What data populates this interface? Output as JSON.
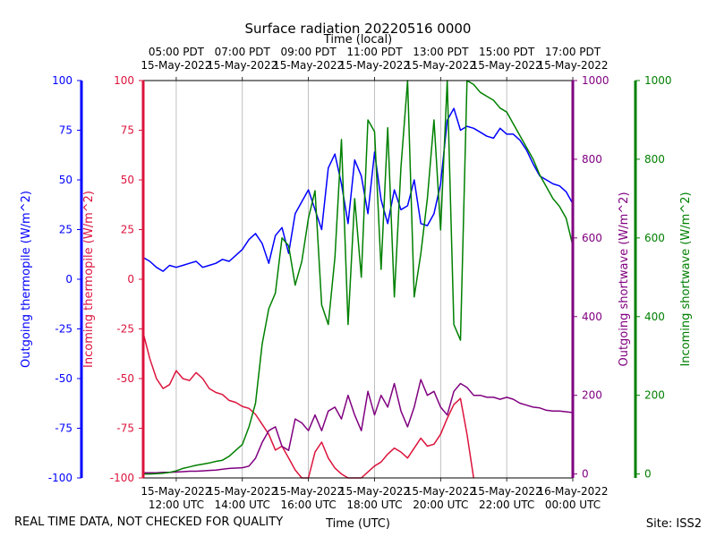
{
  "chart_data": {
    "type": "line",
    "title": "Surface radiation 20220516 0000",
    "top_axis_label": "Time (local)",
    "xlabel": "Time (UTC)",
    "footer_left": "REAL TIME DATA, NOT CHECKED FOR QUALITY",
    "footer_right": "Site: ISS2",
    "xlim": [
      11.0,
      24.0
    ],
    "bottom_ticks": [
      {
        "x": 12,
        "date": "15-May-2022",
        "time": "12:00 UTC"
      },
      {
        "x": 14,
        "date": "15-May-2022",
        "time": "14:00 UTC"
      },
      {
        "x": 16,
        "date": "15-May-2022",
        "time": "16:00 UTC"
      },
      {
        "x": 18,
        "date": "15-May-2022",
        "time": "18:00 UTC"
      },
      {
        "x": 20,
        "date": "15-May-2022",
        "time": "20:00 UTC"
      },
      {
        "x": 22,
        "date": "15-May-2022",
        "time": "22:00 UTC"
      },
      {
        "x": 24,
        "date": "16-May-2022",
        "time": "00:00 UTC"
      }
    ],
    "top_ticks": [
      {
        "x": 12,
        "time": "05:00 PDT",
        "date": "15-May-2022"
      },
      {
        "x": 14,
        "time": "07:00 PDT",
        "date": "15-May-2022"
      },
      {
        "x": 16,
        "time": "09:00 PDT",
        "date": "15-May-2022"
      },
      {
        "x": 18,
        "time": "11:00 PDT",
        "date": "15-May-2022"
      },
      {
        "x": 20,
        "time": "13:00 PDT",
        "date": "15-May-2022"
      },
      {
        "x": 22,
        "time": "15:00 PDT",
        "date": "15-May-2022"
      },
      {
        "x": 24,
        "time": "17:00 PDT",
        "date": "15-May-2022"
      }
    ],
    "axes": {
      "outgoing_thermopile": {
        "label": "Outgoing thermopile (W/m^2)",
        "color": "#0000ff",
        "ylim": [
          -100,
          100
        ],
        "ticks": [
          -100,
          -75,
          -50,
          -25,
          0,
          25,
          50,
          75,
          100
        ]
      },
      "incoming_thermopile": {
        "label": "Incoming thermopile (W/m^2)",
        "color": "#dc143c",
        "ylim": [
          -100,
          100
        ],
        "ticks": [
          -100,
          -75,
          -50,
          -25,
          0,
          25,
          50,
          75,
          100
        ]
      },
      "outgoing_shortwave": {
        "label": "Outgoing shortwave (W/m^2)",
        "color": "#800080",
        "ylim": [
          -10,
          1000
        ],
        "ticks": [
          0,
          200,
          400,
          600,
          800,
          1000
        ]
      },
      "incoming_shortwave": {
        "label": "Incoming shortwave (W/m^2)",
        "color": "#008000",
        "ylim": [
          -10,
          1000
        ],
        "ticks": [
          0,
          200,
          400,
          600,
          800,
          1000
        ]
      }
    },
    "series": [
      {
        "name": "Outgoing thermopile",
        "axis": "outgoing_thermopile",
        "color": "#0000ff",
        "x": [
          11.0,
          11.2,
          11.4,
          11.6,
          11.8,
          12.0,
          12.2,
          12.4,
          12.6,
          12.8,
          13.0,
          13.2,
          13.4,
          13.6,
          13.8,
          14.0,
          14.2,
          14.4,
          14.6,
          14.8,
          15.0,
          15.2,
          15.4,
          15.6,
          15.8,
          16.0,
          16.2,
          16.4,
          16.6,
          16.8,
          17.0,
          17.2,
          17.4,
          17.6,
          17.8,
          18.0,
          18.2,
          18.4,
          18.6,
          18.8,
          19.0,
          19.2,
          19.4,
          19.6,
          19.8,
          20.0,
          20.2,
          20.4,
          20.6,
          20.8,
          21.0,
          21.2,
          21.4,
          21.6,
          21.8,
          22.0,
          22.2,
          22.4,
          22.6,
          22.8,
          23.0,
          23.2,
          23.4,
          23.6,
          23.8,
          24.0
        ],
        "values": [
          11,
          9,
          6,
          4,
          7,
          6,
          7,
          8,
          9,
          6,
          7,
          8,
          10,
          9,
          12,
          15,
          20,
          23,
          18,
          8,
          22,
          26,
          13,
          33,
          39,
          45,
          35,
          25,
          56,
          63,
          48,
          28,
          60,
          52,
          33,
          64,
          40,
          28,
          45,
          35,
          37,
          50,
          28,
          27,
          33,
          48,
          80,
          86,
          75,
          77,
          76,
          74,
          72,
          71,
          76,
          73,
          73,
          70,
          65,
          58,
          52,
          50,
          48,
          47,
          44,
          38
        ]
      },
      {
        "name": "Incoming thermopile",
        "axis": "incoming_thermopile",
        "color": "#dc143c",
        "x": [
          11.0,
          11.2,
          11.4,
          11.6,
          11.8,
          12.0,
          12.2,
          12.4,
          12.6,
          12.8,
          13.0,
          13.2,
          13.4,
          13.6,
          13.8,
          14.0,
          14.2,
          14.4,
          14.6,
          14.8,
          15.0,
          15.2,
          15.4,
          15.6,
          15.8,
          16.0,
          16.2,
          16.4,
          16.6,
          16.8,
          17.0,
          17.2,
          17.4,
          17.6,
          17.8,
          18.0,
          18.2,
          18.4,
          18.6,
          18.8,
          19.0,
          19.2,
          19.4,
          19.6,
          19.8,
          20.0,
          20.2,
          20.4,
          20.6,
          20.8,
          21.0
        ],
        "values": [
          -27,
          -40,
          -50,
          -55,
          -53,
          -46,
          -50,
          -51,
          -47,
          -50,
          -55,
          -57,
          -58,
          -61,
          -62,
          -64,
          -65,
          -68,
          -73,
          -78,
          -86,
          -84,
          -90,
          -96,
          -100,
          -100,
          -87,
          -82,
          -90,
          -95,
          -98,
          -100,
          -100,
          -100,
          -97,
          -94,
          -92,
          -88,
          -85,
          -87,
          -90,
          -85,
          -80,
          -84,
          -83,
          -78,
          -70,
          -63,
          -60,
          -78,
          -100
        ]
      },
      {
        "name": "Outgoing shortwave",
        "axis": "outgoing_shortwave",
        "color": "#800080",
        "x": [
          11.0,
          11.2,
          11.4,
          11.6,
          11.8,
          12.0,
          12.2,
          12.4,
          12.6,
          12.8,
          13.0,
          13.2,
          13.4,
          13.6,
          13.8,
          14.0,
          14.2,
          14.4,
          14.6,
          14.8,
          15.0,
          15.2,
          15.4,
          15.6,
          15.8,
          16.0,
          16.2,
          16.4,
          16.6,
          16.8,
          17.0,
          17.2,
          17.4,
          17.6,
          17.8,
          18.0,
          18.2,
          18.4,
          18.6,
          18.8,
          19.0,
          19.2,
          19.4,
          19.6,
          19.8,
          20.0,
          20.2,
          20.4,
          20.6,
          20.8,
          21.0,
          21.2,
          21.4,
          21.6,
          21.8,
          22.0,
          22.2,
          22.4,
          22.6,
          22.8,
          23.0,
          23.2,
          23.4,
          23.6,
          23.8,
          24.0
        ],
        "values": [
          3,
          3,
          3,
          4,
          4,
          5,
          6,
          7,
          7,
          8,
          9,
          10,
          12,
          14,
          15,
          16,
          20,
          40,
          80,
          110,
          120,
          70,
          60,
          140,
          130,
          110,
          150,
          110,
          160,
          170,
          140,
          200,
          150,
          110,
          210,
          150,
          200,
          170,
          230,
          160,
          120,
          170,
          240,
          200,
          210,
          170,
          150,
          210,
          230,
          220,
          200,
          200,
          195,
          195,
          190,
          195,
          190,
          180,
          175,
          170,
          168,
          162,
          160,
          160,
          158,
          156
        ]
      },
      {
        "name": "Incoming shortwave",
        "axis": "incoming_shortwave",
        "color": "#008000",
        "x": [
          11.0,
          11.2,
          11.4,
          11.6,
          11.8,
          12.0,
          12.2,
          12.4,
          12.6,
          12.8,
          13.0,
          13.2,
          13.4,
          13.6,
          13.8,
          14.0,
          14.2,
          14.4,
          14.6,
          14.8,
          15.0,
          15.2,
          15.4,
          15.6,
          15.8,
          16.0,
          16.2,
          16.4,
          16.6,
          16.8,
          17.0,
          17.2,
          17.4,
          17.6,
          17.8,
          18.0,
          18.2,
          18.4,
          18.6,
          18.8,
          19.0,
          19.2,
          19.4,
          19.6,
          19.8,
          20.0,
          20.2,
          20.4,
          20.6,
          20.8,
          21.0,
          21.2,
          21.4,
          21.6,
          21.8,
          22.0,
          22.2,
          22.4,
          22.6,
          22.8,
          23.0,
          23.2,
          23.4,
          23.6,
          23.8,
          24.0
        ],
        "values": [
          0,
          0,
          1,
          2,
          4,
          8,
          14,
          18,
          22,
          25,
          28,
          32,
          35,
          45,
          60,
          75,
          120,
          180,
          330,
          420,
          460,
          600,
          580,
          480,
          540,
          650,
          720,
          430,
          380,
          550,
          850,
          380,
          700,
          500,
          900,
          870,
          520,
          880,
          450,
          780,
          1000,
          450,
          560,
          700,
          900,
          620,
          1000,
          380,
          340,
          1000,
          990,
          970,
          960,
          950,
          930,
          920,
          890,
          860,
          830,
          800,
          760,
          730,
          700,
          680,
          650,
          580
        ]
      }
    ]
  }
}
